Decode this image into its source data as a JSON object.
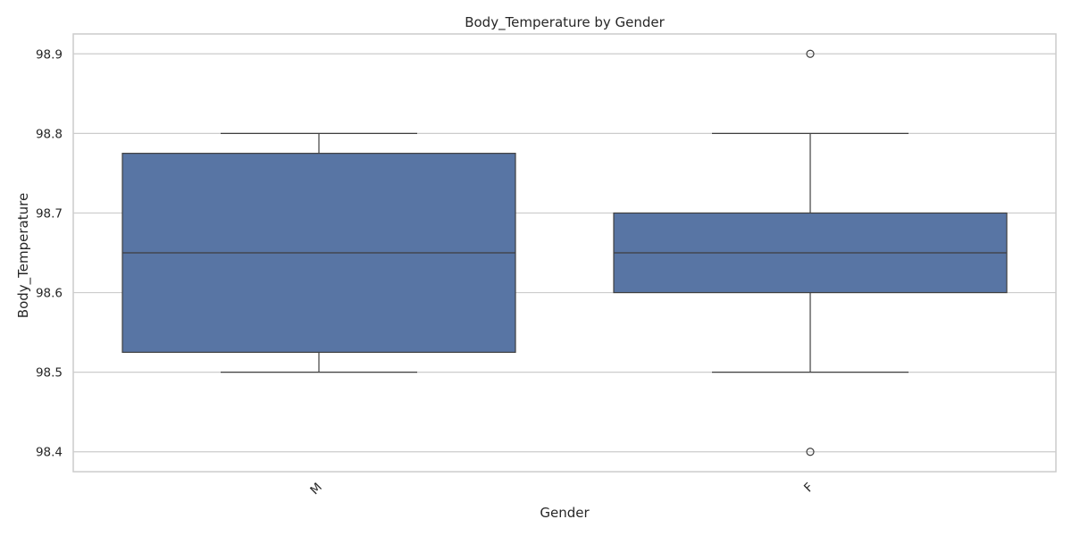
{
  "chart_data": {
    "type": "box",
    "title": "Body_Temperature by Gender",
    "xlabel": "Gender",
    "ylabel": "Body_Temperature",
    "ylim": [
      98.375,
      98.925
    ],
    "yticks": [
      "98.4",
      "98.5",
      "98.6",
      "98.7",
      "98.8",
      "98.9"
    ],
    "categories": [
      "M",
      "F"
    ],
    "grid": true,
    "color": "#5875a4",
    "series": [
      {
        "category": "M",
        "whislo": 98.5,
        "q1": 98.525,
        "median": 98.65,
        "q3": 98.775,
        "whishi": 98.8,
        "fliers": []
      },
      {
        "category": "F",
        "whislo": 98.5,
        "q1": 98.6,
        "median": 98.65,
        "q3": 98.7,
        "whishi": 98.8,
        "fliers": [
          98.9,
          98.4
        ]
      }
    ]
  }
}
